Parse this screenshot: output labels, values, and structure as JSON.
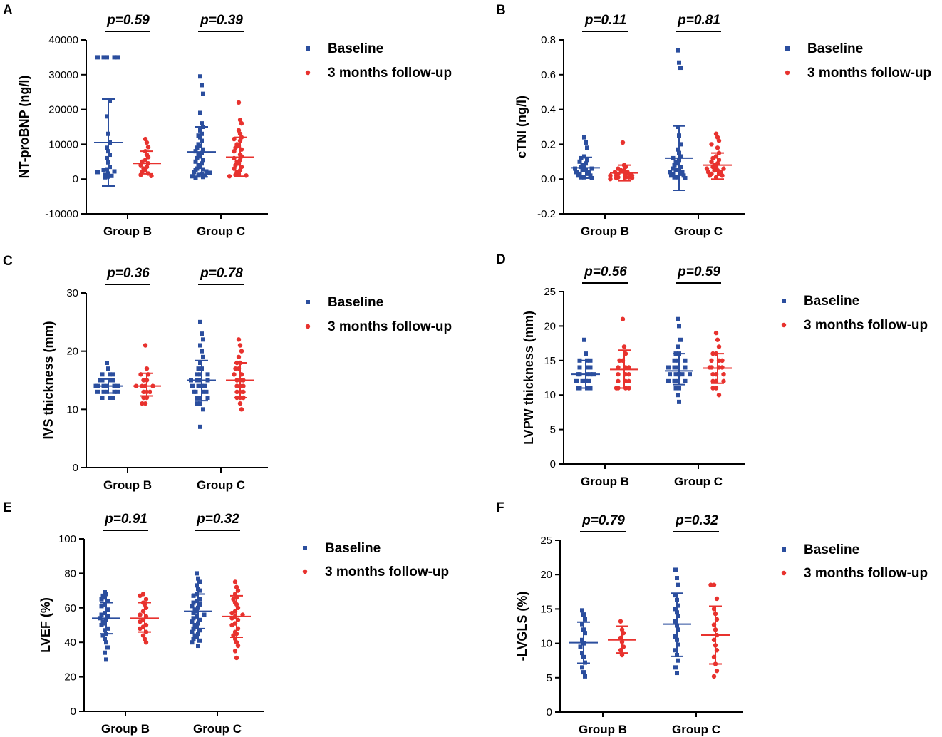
{
  "colors": {
    "baseline": "#2B4E9E",
    "followup": "#E8322E",
    "axis": "#000000"
  },
  "legend": {
    "baseline": "Baseline",
    "followup": "3 months follow-up"
  },
  "chart_data": [
    {
      "type": "scatter",
      "panel": "A",
      "ylabel": "NT-proBNP (ng/l)",
      "ylim": [
        -10000,
        40000
      ],
      "yticks": [
        -10000,
        0,
        10000,
        20000,
        30000,
        40000
      ],
      "ytick_labels": [
        "-10000",
        "0",
        "10000",
        "20000",
        "30000",
        "40000"
      ],
      "categories": [
        "Group B",
        "Group C"
      ],
      "pvalues": [
        "p=0.59",
        "p=0.39"
      ],
      "series": [
        {
          "name": "Baseline",
          "group": "Group B",
          "mean": 10500,
          "sd_low": -2000,
          "sd_high": 23000,
          "points": [
            35000,
            35000,
            35000,
            35000,
            35000,
            22500,
            18000,
            13000,
            10500,
            9000,
            8000,
            7000,
            6000,
            4800,
            3500,
            2800,
            2500,
            2200,
            2000,
            1600,
            1200,
            900,
            700,
            500
          ]
        },
        {
          "name": "3 months follow-up",
          "group": "Group B",
          "mean": 4500,
          "sd_low": 1500,
          "sd_high": 8000,
          "points": [
            11500,
            10500,
            9200,
            8000,
            7000,
            6300,
            5500,
            5000,
            4500,
            4000,
            3500,
            3000,
            2500,
            2000,
            1600,
            1200,
            900
          ]
        },
        {
          "name": "Baseline",
          "group": "Group C",
          "mean": 7800,
          "sd_low": 600,
          "sd_high": 15000,
          "points": [
            29500,
            27000,
            24500,
            19000,
            16000,
            15000,
            14000,
            13000,
            12500,
            12000,
            11000,
            10000,
            9500,
            9000,
            8500,
            8000,
            7500,
            7000,
            6500,
            6000,
            5500,
            5000,
            4500,
            4000,
            3500,
            3000,
            2800,
            2500,
            2200,
            2000,
            1800,
            1500,
            1200,
            1000,
            800,
            600,
            400
          ]
        },
        {
          "name": "3 months follow-up",
          "group": "Group C",
          "mean": 6300,
          "sd_low": 800,
          "sd_high": 12000,
          "points": [
            22000,
            17000,
            16000,
            14000,
            13000,
            12000,
            11500,
            11000,
            10000,
            9500,
            9000,
            8500,
            8000,
            7000,
            6500,
            6000,
            5500,
            5000,
            4500,
            4000,
            3500,
            3000,
            2500,
            2000,
            1500,
            1200,
            1000,
            800
          ]
        }
      ]
    },
    {
      "type": "scatter",
      "panel": "B",
      "ylabel": "cTNI (ng/l)",
      "ylim": [
        -0.2,
        0.8
      ],
      "yticks": [
        -0.2,
        0.0,
        0.2,
        0.4,
        0.6,
        0.8
      ],
      "ytick_labels": [
        "-0.2",
        "0.0",
        "0.2",
        "0.4",
        "0.6",
        "0.8"
      ],
      "categories": [
        "Group B",
        "Group C"
      ],
      "pvalues": [
        "p=0.11",
        "p=0.81"
      ],
      "series": [
        {
          "name": "Baseline",
          "group": "Group B",
          "mean": 0.065,
          "sd_low": 0.005,
          "sd_high": 0.125,
          "points": [
            0.24,
            0.21,
            0.18,
            0.13,
            0.12,
            0.11,
            0.1,
            0.09,
            0.08,
            0.07,
            0.07,
            0.06,
            0.06,
            0.05,
            0.05,
            0.04,
            0.04,
            0.03,
            0.03,
            0.02,
            0.02,
            0.01,
            0.01,
            0.005
          ]
        },
        {
          "name": "3 months follow-up",
          "group": "Group B",
          "mean": 0.035,
          "sd_low": -0.01,
          "sd_high": 0.08,
          "points": [
            0.21,
            0.08,
            0.07,
            0.06,
            0.05,
            0.05,
            0.04,
            0.04,
            0.03,
            0.03,
            0.03,
            0.02,
            0.02,
            0.02,
            0.01,
            0.01,
            0.01,
            0.005,
            0.005,
            0.0
          ]
        },
        {
          "name": "Baseline",
          "group": "Group C",
          "mean": 0.12,
          "sd_low": -0.065,
          "sd_high": 0.305,
          "points": [
            0.74,
            0.67,
            0.64,
            0.3,
            0.25,
            0.2,
            0.17,
            0.15,
            0.13,
            0.12,
            0.11,
            0.1,
            0.09,
            0.08,
            0.07,
            0.06,
            0.05,
            0.05,
            0.04,
            0.04,
            0.03,
            0.03,
            0.02,
            0.02,
            0.01,
            0.01,
            0.005
          ]
        },
        {
          "name": "3 months follow-up",
          "group": "Group C",
          "mean": 0.08,
          "sd_low": 0.0,
          "sd_high": 0.15,
          "points": [
            0.26,
            0.24,
            0.22,
            0.2,
            0.18,
            0.15,
            0.13,
            0.12,
            0.11,
            0.1,
            0.09,
            0.08,
            0.07,
            0.07,
            0.06,
            0.06,
            0.05,
            0.05,
            0.04,
            0.04,
            0.03,
            0.03,
            0.02,
            0.02,
            0.01
          ]
        }
      ]
    },
    {
      "type": "scatter",
      "panel": "C",
      "ylabel": "IVS thickness (mm)",
      "ylim": [
        0,
        30
      ],
      "yticks": [
        0,
        10,
        20,
        30
      ],
      "ytick_labels": [
        "0",
        "10",
        "20",
        "30"
      ],
      "categories": [
        "Group B",
        "Group C"
      ],
      "pvalues": [
        "p=0.36",
        "p=0.78"
      ],
      "series": [
        {
          "name": "Baseline",
          "group": "Group B",
          "mean": 14,
          "sd_low": 12.8,
          "sd_high": 15.2,
          "points": [
            18,
            17,
            16,
            16,
            16,
            15,
            15,
            15,
            15,
            14,
            14,
            14,
            14,
            14,
            14,
            13,
            13,
            13,
            13,
            13,
            12,
            12,
            12
          ]
        },
        {
          "name": "3 months follow-up",
          "group": "Group B",
          "mean": 14,
          "sd_low": 12.3,
          "sd_high": 16.2,
          "points": [
            21,
            17,
            16,
            16,
            15,
            15,
            14,
            14,
            14,
            14,
            13,
            13,
            13,
            12,
            12,
            11,
            11
          ]
        },
        {
          "name": "Baseline",
          "group": "Group C",
          "mean": 15,
          "sd_low": 11.5,
          "sd_high": 18.4,
          "points": [
            25,
            23,
            22,
            21,
            20,
            19,
            18,
            17,
            17,
            16,
            16,
            16,
            15,
            15,
            15,
            15,
            14,
            14,
            14,
            14,
            13,
            13,
            13,
            13,
            12,
            12,
            12,
            11,
            11,
            10,
            7
          ]
        },
        {
          "name": "3 months follow-up",
          "group": "Group C",
          "mean": 15,
          "sd_low": 12,
          "sd_high": 18,
          "points": [
            22,
            21,
            20,
            19,
            18,
            18,
            17,
            17,
            16,
            16,
            15,
            15,
            15,
            14,
            14,
            14,
            13,
            13,
            13,
            12,
            12,
            12,
            11,
            10
          ]
        }
      ]
    },
    {
      "type": "scatter",
      "panel": "D",
      "ylabel": "LVPW thickness (mm)",
      "ylim": [
        0,
        25
      ],
      "yticks": [
        0,
        5,
        10,
        15,
        20,
        25
      ],
      "ytick_labels": [
        "0",
        "5",
        "10",
        "15",
        "20",
        "25"
      ],
      "categories": [
        "Group B",
        "Group C"
      ],
      "pvalues": [
        "p=0.56",
        "p=0.59"
      ],
      "series": [
        {
          "name": "Baseline",
          "group": "Group B",
          "mean": 13,
          "sd_low": 11,
          "sd_high": 15,
          "points": [
            18,
            16,
            15,
            15,
            15,
            14,
            14,
            14,
            13,
            13,
            13,
            13,
            13,
            12,
            12,
            12,
            12,
            11,
            11,
            11,
            11
          ]
        },
        {
          "name": "3 months follow-up",
          "group": "Group B",
          "mean": 13.7,
          "sd_low": 11,
          "sd_high": 16.5,
          "points": [
            21,
            17,
            16,
            15,
            15,
            14,
            14,
            14,
            13,
            13,
            13,
            12,
            12,
            12,
            11,
            11,
            11,
            11
          ]
        },
        {
          "name": "Baseline",
          "group": "Group C",
          "mean": 13.5,
          "sd_low": 11.5,
          "sd_high": 16,
          "points": [
            21,
            20,
            18,
            17,
            16,
            16,
            15,
            15,
            15,
            14,
            14,
            14,
            14,
            13,
            13,
            13,
            13,
            13,
            12,
            12,
            12,
            12,
            11,
            11,
            10,
            9
          ]
        },
        {
          "name": "3 months follow-up",
          "group": "Group C",
          "mean": 13.9,
          "sd_low": 11.7,
          "sd_high": 16,
          "points": [
            19,
            18,
            17,
            16,
            16,
            15,
            15,
            15,
            14,
            14,
            14,
            14,
            13,
            13,
            13,
            12,
            12,
            12,
            11,
            11,
            10
          ]
        }
      ]
    },
    {
      "type": "scatter",
      "panel": "E",
      "ylabel": "LVEF (%)",
      "ylim": [
        0,
        100
      ],
      "yticks": [
        0,
        20,
        40,
        60,
        80,
        100
      ],
      "ytick_labels": [
        "0",
        "20",
        "40",
        "60",
        "80",
        "100"
      ],
      "categories": [
        "Group B",
        "Group C"
      ],
      "pvalues": [
        "p=0.91",
        "p=0.32"
      ],
      "series": [
        {
          "name": "Baseline",
          "group": "Group B",
          "mean": 54,
          "sd_low": 45,
          "sd_high": 63,
          "points": [
            69,
            68,
            67,
            66,
            65,
            64,
            62,
            61,
            59,
            57,
            56,
            55,
            54,
            53,
            52,
            51,
            50,
            48,
            47,
            45,
            44,
            42,
            40,
            37,
            34,
            30
          ]
        },
        {
          "name": "3 months follow-up",
          "group": "Group B",
          "mean": 54,
          "sd_low": 46,
          "sd_high": 63,
          "points": [
            68,
            67,
            65,
            63,
            62,
            60,
            58,
            56,
            55,
            53,
            52,
            50,
            49,
            48,
            46,
            44,
            42,
            40
          ]
        },
        {
          "name": "Baseline",
          "group": "Group C",
          "mean": 58,
          "sd_low": 48,
          "sd_high": 68,
          "points": [
            80,
            77,
            75,
            73,
            71,
            70,
            68,
            67,
            65,
            64,
            63,
            62,
            61,
            60,
            59,
            58,
            57,
            56,
            55,
            54,
            53,
            52,
            51,
            50,
            49,
            48,
            47,
            46,
            45,
            44,
            43,
            42,
            41,
            40,
            38
          ]
        },
        {
          "name": "3 months follow-up",
          "group": "Group C",
          "mean": 55,
          "sd_low": 43,
          "sd_high": 67,
          "points": [
            75,
            72,
            70,
            68,
            66,
            65,
            63,
            62,
            60,
            58,
            57,
            56,
            55,
            54,
            53,
            51,
            50,
            48,
            46,
            45,
            44,
            42,
            40,
            38,
            35,
            31
          ]
        }
      ]
    },
    {
      "type": "scatter",
      "panel": "F",
      "ylabel": "-LVGLS (%)",
      "ylim": [
        0,
        25
      ],
      "yticks": [
        0,
        5,
        10,
        15,
        20,
        25
      ],
      "ytick_labels": [
        "0",
        "5",
        "10",
        "15",
        "20",
        "25"
      ],
      "categories": [
        "Group B",
        "Group C"
      ],
      "pvalues": [
        "p=0.79",
        "p=0.32"
      ],
      "series": [
        {
          "name": "Baseline",
          "group": "Group B",
          "mean": 10.1,
          "sd_low": 7.1,
          "sd_high": 13.1,
          "points": [
            14.8,
            14.2,
            13.5,
            12.8,
            12,
            11.5,
            10.5,
            10,
            9.5,
            8.6,
            8,
            7.2,
            6.5,
            5.8,
            5.2
          ]
        },
        {
          "name": "3 months follow-up",
          "group": "Group B",
          "mean": 10.5,
          "sd_low": 8.6,
          "sd_high": 12.5,
          "points": [
            13.2,
            12,
            11.5,
            10.8,
            10.2,
            9.5,
            9,
            8.3
          ]
        },
        {
          "name": "Baseline",
          "group": "Group C",
          "mean": 12.8,
          "sd_low": 8.1,
          "sd_high": 17.3,
          "points": [
            20.7,
            19.5,
            18.5,
            17,
            16.3,
            15.5,
            15,
            14.5,
            14,
            13.2,
            12.6,
            12,
            11,
            10.5,
            9.8,
            9,
            8.3,
            7.5,
            6.5,
            5.7
          ]
        },
        {
          "name": "3 months follow-up",
          "group": "Group C",
          "mean": 11.2,
          "sd_low": 7,
          "sd_high": 15.4,
          "points": [
            18.5,
            18.5,
            16.5,
            15,
            14.3,
            13.5,
            12.7,
            12,
            11.2,
            10.5,
            9.7,
            9,
            8,
            7,
            6,
            5.2
          ]
        }
      ]
    }
  ]
}
